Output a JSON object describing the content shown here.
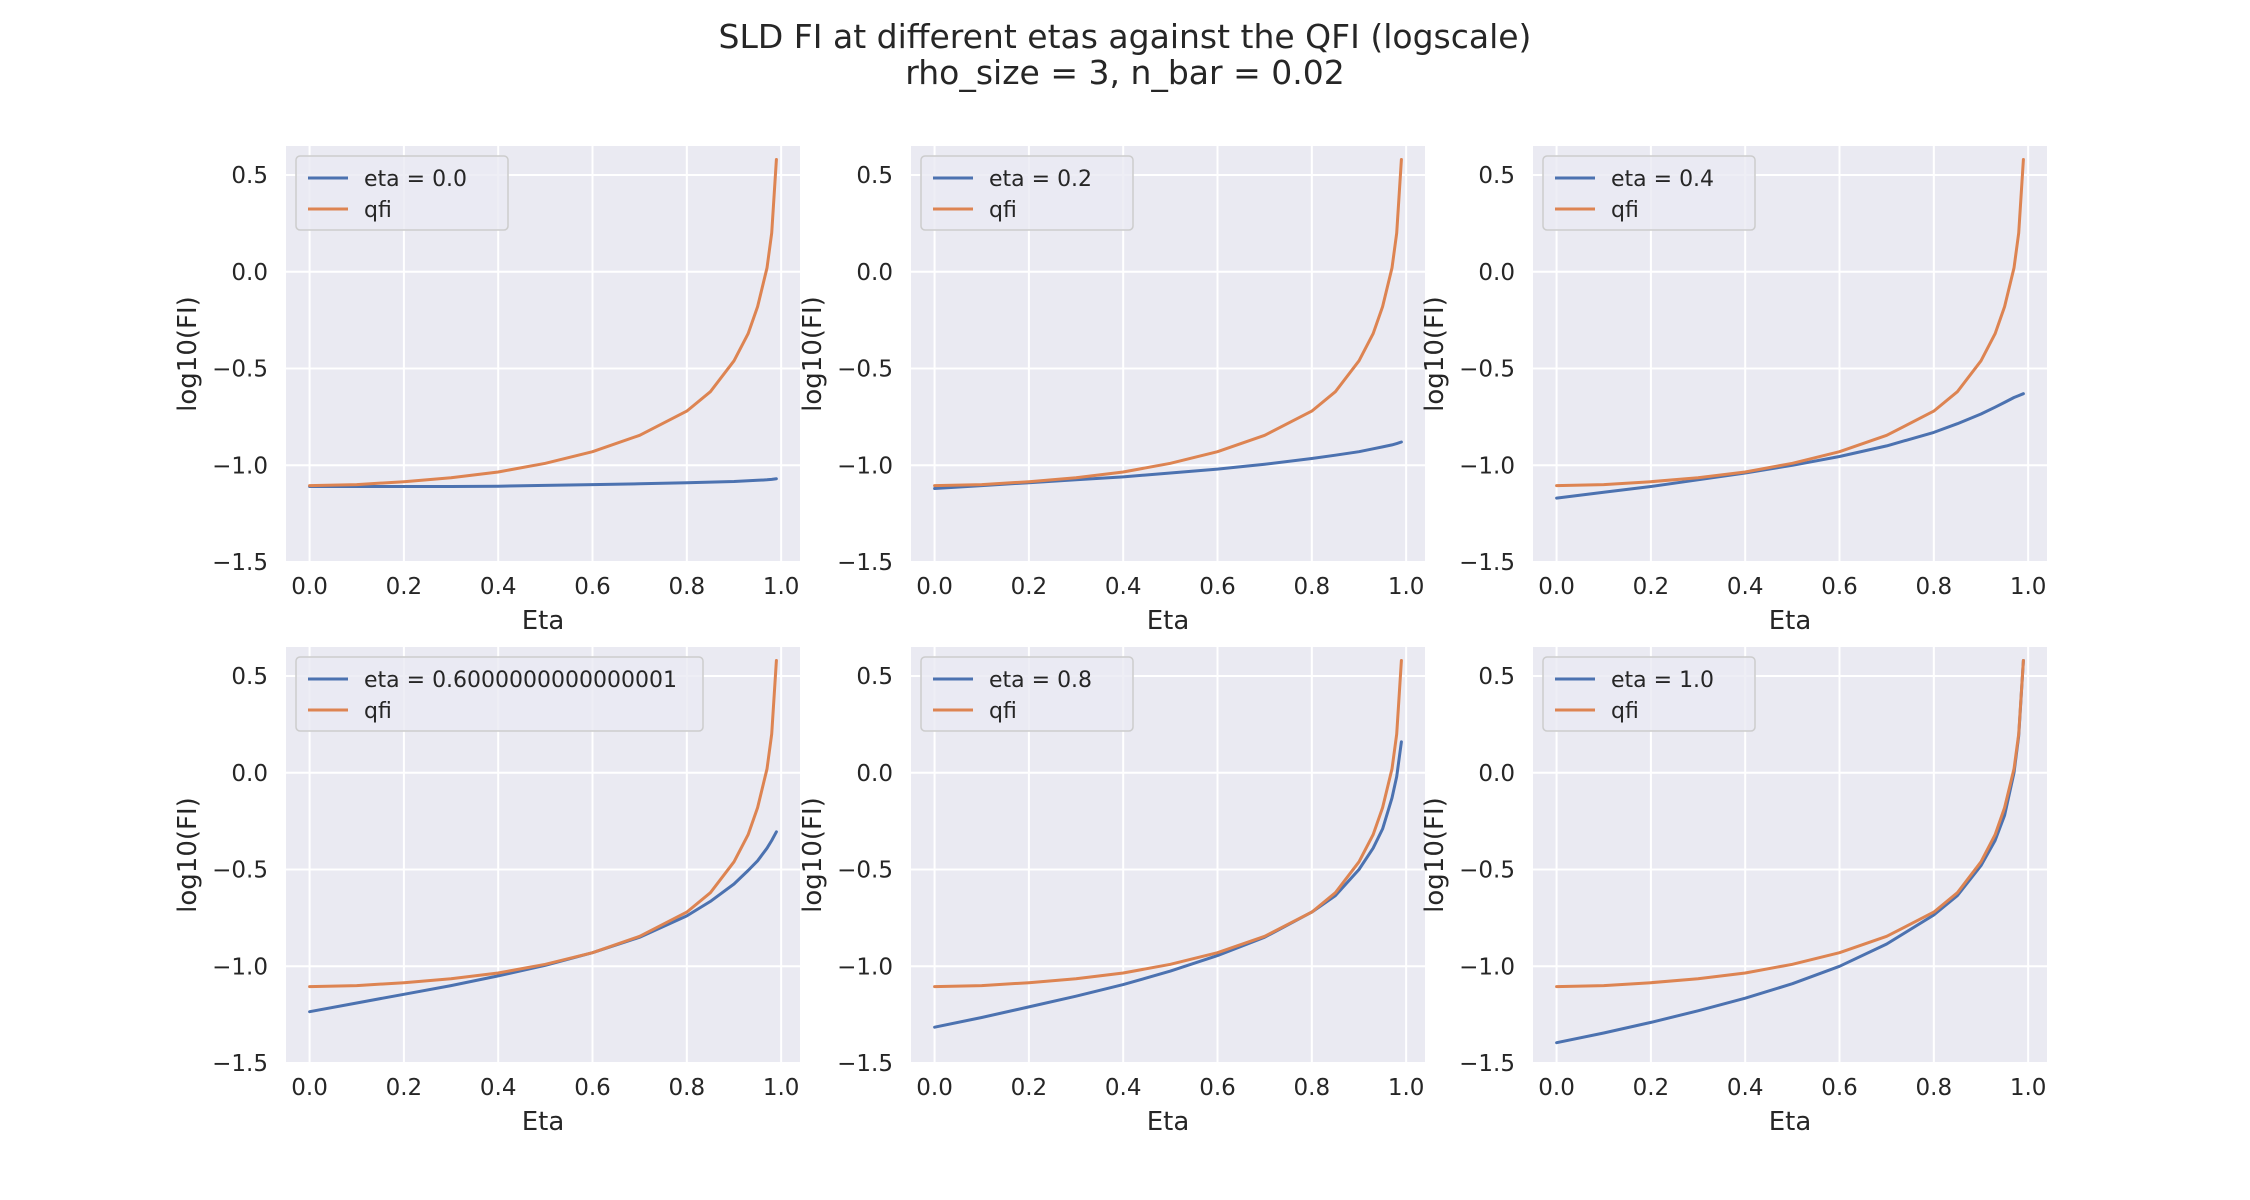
{
  "title_line1": "SLD FI at different etas against the QFI (logscale)",
  "title_line2": "rho_size = 3, n_bar = 0.02",
  "colors": {
    "sld": "#4c72b0",
    "qfi": "#dd8452",
    "plot_bg": "#eaeaf2",
    "grid": "#ffffff"
  },
  "chart_data": [
    {
      "type": "line",
      "xlabel": "Eta",
      "ylabel": "log10(FI)",
      "xlim": [
        -0.05,
        1.04
      ],
      "ylim": [
        -1.5,
        0.65
      ],
      "xticks": [
        "0.0",
        "0.2",
        "0.4",
        "0.6",
        "0.8",
        "1.0"
      ],
      "yticks": [
        "0.5",
        "0.0",
        "−0.5",
        "−1.0",
        "−1.5"
      ],
      "grid": true,
      "legend": "upper left",
      "x": [
        0,
        0.1,
        0.2,
        0.3,
        0.4,
        0.5,
        0.6,
        0.7,
        0.8,
        0.85,
        0.9,
        0.93,
        0.95,
        0.97,
        0.98,
        0.99
      ],
      "series": [
        {
          "name": "eta = 0.0",
          "values": [
            -1.11,
            -1.11,
            -1.11,
            -1.11,
            -1.108,
            -1.104,
            -1.1,
            -1.096,
            -1.09,
            -1.087,
            -1.084,
            -1.08,
            -1.078,
            -1.075,
            -1.073,
            -1.07
          ]
        },
        {
          "name": "qfi",
          "values": [
            -1.105,
            -1.1,
            -1.085,
            -1.065,
            -1.035,
            -0.99,
            -0.93,
            -0.845,
            -0.72,
            -0.62,
            -0.46,
            -0.32,
            -0.18,
            0.02,
            0.2,
            0.58
          ]
        }
      ]
    },
    {
      "type": "line",
      "xlabel": "Eta",
      "ylabel": "log10(FI)",
      "xlim": [
        -0.05,
        1.04
      ],
      "ylim": [
        -1.5,
        0.65
      ],
      "xticks": [
        "0.0",
        "0.2",
        "0.4",
        "0.6",
        "0.8",
        "1.0"
      ],
      "yticks": [
        "0.5",
        "0.0",
        "−0.5",
        "−1.0",
        "−1.5"
      ],
      "grid": true,
      "legend": "upper left",
      "x": [
        0,
        0.1,
        0.2,
        0.3,
        0.4,
        0.5,
        0.6,
        0.7,
        0.8,
        0.85,
        0.9,
        0.93,
        0.95,
        0.97,
        0.98,
        0.99
      ],
      "series": [
        {
          "name": "eta = 0.2",
          "values": [
            -1.12,
            -1.105,
            -1.09,
            -1.075,
            -1.06,
            -1.04,
            -1.02,
            -0.995,
            -0.965,
            -0.948,
            -0.93,
            -0.915,
            -0.905,
            -0.895,
            -0.888,
            -0.88
          ]
        },
        {
          "name": "qfi",
          "values": [
            -1.105,
            -1.1,
            -1.085,
            -1.065,
            -1.035,
            -0.99,
            -0.93,
            -0.845,
            -0.72,
            -0.62,
            -0.46,
            -0.32,
            -0.18,
            0.02,
            0.2,
            0.58
          ]
        }
      ]
    },
    {
      "type": "line",
      "xlabel": "Eta",
      "ylabel": "log10(FI)",
      "xlim": [
        -0.05,
        1.04
      ],
      "ylim": [
        -1.5,
        0.65
      ],
      "xticks": [
        "0.0",
        "0.2",
        "0.4",
        "0.6",
        "0.8",
        "1.0"
      ],
      "yticks": [
        "0.5",
        "0.0",
        "−0.5",
        "−1.0",
        "−1.5"
      ],
      "grid": true,
      "legend": "upper left",
      "x": [
        0,
        0.1,
        0.2,
        0.3,
        0.4,
        0.5,
        0.6,
        0.7,
        0.8,
        0.85,
        0.9,
        0.93,
        0.95,
        0.97,
        0.98,
        0.99
      ],
      "series": [
        {
          "name": "eta = 0.4",
          "values": [
            -1.17,
            -1.14,
            -1.11,
            -1.075,
            -1.04,
            -1.0,
            -0.955,
            -0.9,
            -0.83,
            -0.785,
            -0.735,
            -0.7,
            -0.675,
            -0.65,
            -0.64,
            -0.63
          ]
        },
        {
          "name": "qfi",
          "values": [
            -1.105,
            -1.1,
            -1.085,
            -1.065,
            -1.035,
            -0.99,
            -0.93,
            -0.845,
            -0.72,
            -0.62,
            -0.46,
            -0.32,
            -0.18,
            0.02,
            0.2,
            0.58
          ]
        }
      ]
    },
    {
      "type": "line",
      "xlabel": "Eta",
      "ylabel": "log10(FI)",
      "xlim": [
        -0.05,
        1.04
      ],
      "ylim": [
        -1.5,
        0.65
      ],
      "xticks": [
        "0.0",
        "0.2",
        "0.4",
        "0.6",
        "0.8",
        "1.0"
      ],
      "yticks": [
        "0.5",
        "0.0",
        "−0.5",
        "−1.0",
        "−1.5"
      ],
      "grid": true,
      "legend": "upper left",
      "x": [
        0,
        0.1,
        0.2,
        0.3,
        0.4,
        0.5,
        0.6,
        0.7,
        0.8,
        0.85,
        0.9,
        0.93,
        0.95,
        0.97,
        0.98,
        0.99
      ],
      "series": [
        {
          "name": "eta = 0.6000000000000001",
          "values": [
            -1.235,
            -1.19,
            -1.145,
            -1.1,
            -1.05,
            -0.995,
            -0.93,
            -0.85,
            -0.74,
            -0.665,
            -0.575,
            -0.505,
            -0.455,
            -0.39,
            -0.35,
            -0.305
          ]
        },
        {
          "name": "qfi",
          "values": [
            -1.105,
            -1.1,
            -1.085,
            -1.065,
            -1.035,
            -0.99,
            -0.93,
            -0.845,
            -0.72,
            -0.62,
            -0.46,
            -0.32,
            -0.18,
            0.02,
            0.2,
            0.58
          ]
        }
      ]
    },
    {
      "type": "line",
      "xlabel": "Eta",
      "ylabel": "log10(FI)",
      "xlim": [
        -0.05,
        1.04
      ],
      "ylim": [
        -1.5,
        0.65
      ],
      "xticks": [
        "0.0",
        "0.2",
        "0.4",
        "0.6",
        "0.8",
        "1.0"
      ],
      "yticks": [
        "0.5",
        "0.0",
        "−0.5",
        "−1.0",
        "−1.5"
      ],
      "grid": true,
      "legend": "upper left",
      "x": [
        0,
        0.1,
        0.2,
        0.3,
        0.4,
        0.5,
        0.6,
        0.7,
        0.8,
        0.85,
        0.9,
        0.93,
        0.95,
        0.97,
        0.98,
        0.99
      ],
      "series": [
        {
          "name": "eta = 0.8",
          "values": [
            -1.315,
            -1.265,
            -1.21,
            -1.155,
            -1.095,
            -1.025,
            -0.945,
            -0.85,
            -0.72,
            -0.635,
            -0.5,
            -0.39,
            -0.29,
            -0.13,
            -0.02,
            0.16
          ]
        },
        {
          "name": "qfi",
          "values": [
            -1.105,
            -1.1,
            -1.085,
            -1.065,
            -1.035,
            -0.99,
            -0.93,
            -0.845,
            -0.72,
            -0.62,
            -0.46,
            -0.32,
            -0.18,
            0.02,
            0.2,
            0.58
          ]
        }
      ]
    },
    {
      "type": "line",
      "xlabel": "Eta",
      "ylabel": "log10(FI)",
      "xlim": [
        -0.05,
        1.04
      ],
      "ylim": [
        -1.5,
        0.65
      ],
      "xticks": [
        "0.0",
        "0.2",
        "0.4",
        "0.6",
        "0.8",
        "1.0"
      ],
      "yticks": [
        "0.5",
        "0.0",
        "−0.5",
        "−1.0",
        "−1.5"
      ],
      "grid": true,
      "legend": "upper left",
      "x": [
        0,
        0.1,
        0.2,
        0.3,
        0.4,
        0.5,
        0.6,
        0.7,
        0.8,
        0.85,
        0.9,
        0.93,
        0.95,
        0.97,
        0.98,
        0.99
      ],
      "series": [
        {
          "name": "eta = 1.0",
          "values": [
            -1.395,
            -1.345,
            -1.29,
            -1.23,
            -1.165,
            -1.09,
            -1.0,
            -0.885,
            -0.735,
            -0.635,
            -0.48,
            -0.35,
            -0.22,
            0.0,
            0.19,
            0.58
          ]
        },
        {
          "name": "qfi",
          "values": [
            -1.105,
            -1.1,
            -1.085,
            -1.065,
            -1.035,
            -0.99,
            -0.93,
            -0.845,
            -0.72,
            -0.62,
            -0.46,
            -0.32,
            -0.18,
            0.02,
            0.2,
            0.58
          ]
        }
      ]
    }
  ]
}
